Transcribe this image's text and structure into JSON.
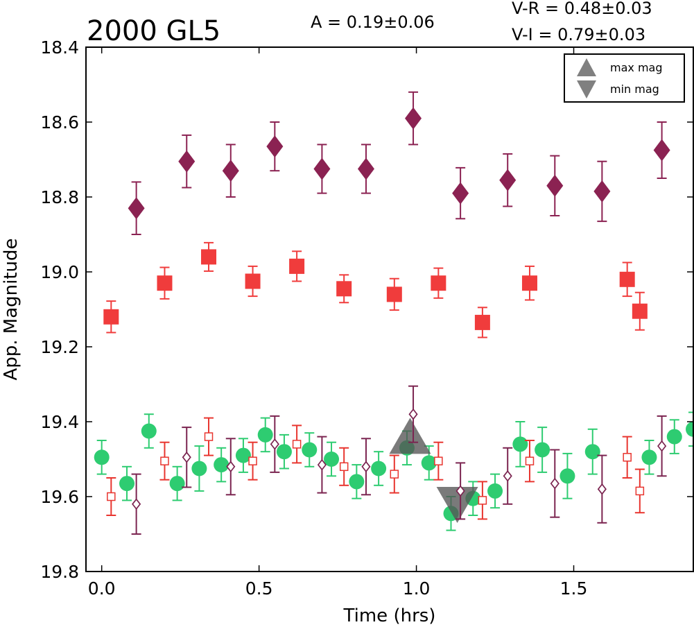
{
  "chart_data": {
    "type": "scatter",
    "title": "2000 GL5",
    "annotations": {
      "amplitude": "A  = 0.19±0.06",
      "v_r": "V-R = 0.48±0.03",
      "v_i": "V-I  = 0.79±0.03"
    },
    "xlabel": "Time (hrs)",
    "ylabel": "App. Magnitude",
    "xlim": [
      -0.05,
      1.88
    ],
    "ylim": [
      19.8,
      18.4
    ],
    "y_inverted": true,
    "x_ticks": [
      "0.0",
      "0.5",
      "1.0",
      "1.5"
    ],
    "y_ticks": [
      "18.4",
      "18.6",
      "18.8",
      "19.0",
      "19.2",
      "19.4",
      "19.6",
      "19.8"
    ],
    "grid": false,
    "legend": {
      "position": "top-right",
      "entries": [
        {
          "label": "max mag",
          "marker": "triangle-up"
        },
        {
          "label": "min mag",
          "marker": "triangle-down"
        }
      ]
    },
    "markers": {
      "max_mag": {
        "x": 0.98,
        "y": 19.46
      },
      "min_mag": {
        "x": 1.13,
        "y": 19.6
      }
    },
    "series": [
      {
        "marker": "diamond-filled",
        "color": "#8b2252",
        "points": [
          {
            "x": 0.11,
            "y": 18.83,
            "err": 0.07
          },
          {
            "x": 0.27,
            "y": 18.705,
            "err": 0.07
          },
          {
            "x": 0.41,
            "y": 18.73,
            "err": 0.07
          },
          {
            "x": 0.55,
            "y": 18.665,
            "err": 0.065
          },
          {
            "x": 0.7,
            "y": 18.725,
            "err": 0.065
          },
          {
            "x": 0.84,
            "y": 18.725,
            "err": 0.065
          },
          {
            "x": 0.99,
            "y": 18.59,
            "err": 0.07
          },
          {
            "x": 1.14,
            "y": 18.79,
            "err": 0.068
          },
          {
            "x": 1.29,
            "y": 18.755,
            "err": 0.07
          },
          {
            "x": 1.44,
            "y": 18.77,
            "err": 0.08
          },
          {
            "x": 1.59,
            "y": 18.785,
            "err": 0.08
          },
          {
            "x": 1.78,
            "y": 18.675,
            "err": 0.075
          }
        ]
      },
      {
        "marker": "square-filled",
        "color": "#f03c3c",
        "points": [
          {
            "x": 0.03,
            "y": 19.12,
            "err": 0.042
          },
          {
            "x": 0.2,
            "y": 19.03,
            "err": 0.042
          },
          {
            "x": 0.34,
            "y": 18.96,
            "err": 0.038
          },
          {
            "x": 0.48,
            "y": 19.025,
            "err": 0.04
          },
          {
            "x": 0.62,
            "y": 18.985,
            "err": 0.04
          },
          {
            "x": 0.77,
            "y": 19.045,
            "err": 0.037
          },
          {
            "x": 0.93,
            "y": 19.06,
            "err": 0.042
          },
          {
            "x": 1.07,
            "y": 19.03,
            "err": 0.04
          },
          {
            "x": 1.21,
            "y": 19.135,
            "err": 0.04
          },
          {
            "x": 1.36,
            "y": 19.03,
            "err": 0.045
          },
          {
            "x": 1.67,
            "y": 19.02,
            "err": 0.045
          },
          {
            "x": 1.71,
            "y": 19.105,
            "err": 0.05
          }
        ]
      },
      {
        "marker": "circle-filled",
        "color": "#2ecc71",
        "points": [
          {
            "x": 0.0,
            "y": 19.495,
            "err": 0.045
          },
          {
            "x": 0.08,
            "y": 19.565,
            "err": 0.045
          },
          {
            "x": 0.15,
            "y": 19.425,
            "err": 0.045
          },
          {
            "x": 0.24,
            "y": 19.565,
            "err": 0.045
          },
          {
            "x": 0.31,
            "y": 19.525,
            "err": 0.06
          },
          {
            "x": 0.38,
            "y": 19.515,
            "err": 0.045
          },
          {
            "x": 0.45,
            "y": 19.49,
            "err": 0.045
          },
          {
            "x": 0.52,
            "y": 19.435,
            "err": 0.045
          },
          {
            "x": 0.58,
            "y": 19.48,
            "err": 0.045
          },
          {
            "x": 0.66,
            "y": 19.475,
            "err": 0.045
          },
          {
            "x": 0.73,
            "y": 19.5,
            "err": 0.045
          },
          {
            "x": 0.81,
            "y": 19.56,
            "err": 0.045
          },
          {
            "x": 0.88,
            "y": 19.525,
            "err": 0.045
          },
          {
            "x": 0.97,
            "y": 19.47,
            "err": 0.045
          },
          {
            "x": 1.04,
            "y": 19.51,
            "err": 0.045
          },
          {
            "x": 1.11,
            "y": 19.645,
            "err": 0.045
          },
          {
            "x": 1.18,
            "y": 19.605,
            "err": 0.045
          },
          {
            "x": 1.25,
            "y": 19.585,
            "err": 0.045
          },
          {
            "x": 1.33,
            "y": 19.46,
            "err": 0.06
          },
          {
            "x": 1.4,
            "y": 19.475,
            "err": 0.06
          },
          {
            "x": 1.48,
            "y": 19.545,
            "err": 0.06
          },
          {
            "x": 1.56,
            "y": 19.48,
            "err": 0.06
          },
          {
            "x": 1.74,
            "y": 19.495,
            "err": 0.045
          },
          {
            "x": 1.82,
            "y": 19.44,
            "err": 0.045
          },
          {
            "x": 1.88,
            "y": 19.42,
            "err": 0.045
          }
        ]
      },
      {
        "marker": "square-open",
        "color": "#e8352f",
        "points": [
          {
            "x": 0.03,
            "y": 19.6,
            "err": 0.05
          },
          {
            "x": 0.2,
            "y": 19.505,
            "err": 0.05
          },
          {
            "x": 0.34,
            "y": 19.44,
            "err": 0.05
          },
          {
            "x": 0.48,
            "y": 19.505,
            "err": 0.05
          },
          {
            "x": 0.62,
            "y": 19.46,
            "err": 0.05
          },
          {
            "x": 0.77,
            "y": 19.52,
            "err": 0.05
          },
          {
            "x": 0.93,
            "y": 19.54,
            "err": 0.05
          },
          {
            "x": 1.07,
            "y": 19.505,
            "err": 0.05
          },
          {
            "x": 1.21,
            "y": 19.61,
            "err": 0.05
          },
          {
            "x": 1.36,
            "y": 19.505,
            "err": 0.055
          },
          {
            "x": 1.67,
            "y": 19.495,
            "err": 0.055
          },
          {
            "x": 1.71,
            "y": 19.585,
            "err": 0.058
          }
        ]
      },
      {
        "marker": "diamond-open",
        "color": "#7b2450",
        "points": [
          {
            "x": 0.11,
            "y": 19.62,
            "err": 0.08
          },
          {
            "x": 0.27,
            "y": 19.495,
            "err": 0.08
          },
          {
            "x": 0.41,
            "y": 19.52,
            "err": 0.075
          },
          {
            "x": 0.55,
            "y": 19.46,
            "err": 0.075
          },
          {
            "x": 0.7,
            "y": 19.515,
            "err": 0.075
          },
          {
            "x": 0.84,
            "y": 19.52,
            "err": 0.075
          },
          {
            "x": 0.99,
            "y": 19.38,
            "err": 0.075
          },
          {
            "x": 1.14,
            "y": 19.585,
            "err": 0.075
          },
          {
            "x": 1.29,
            "y": 19.545,
            "err": 0.075
          },
          {
            "x": 1.44,
            "y": 19.565,
            "err": 0.09
          },
          {
            "x": 1.59,
            "y": 19.58,
            "err": 0.09
          },
          {
            "x": 1.78,
            "y": 19.465,
            "err": 0.08
          }
        ]
      }
    ]
  }
}
